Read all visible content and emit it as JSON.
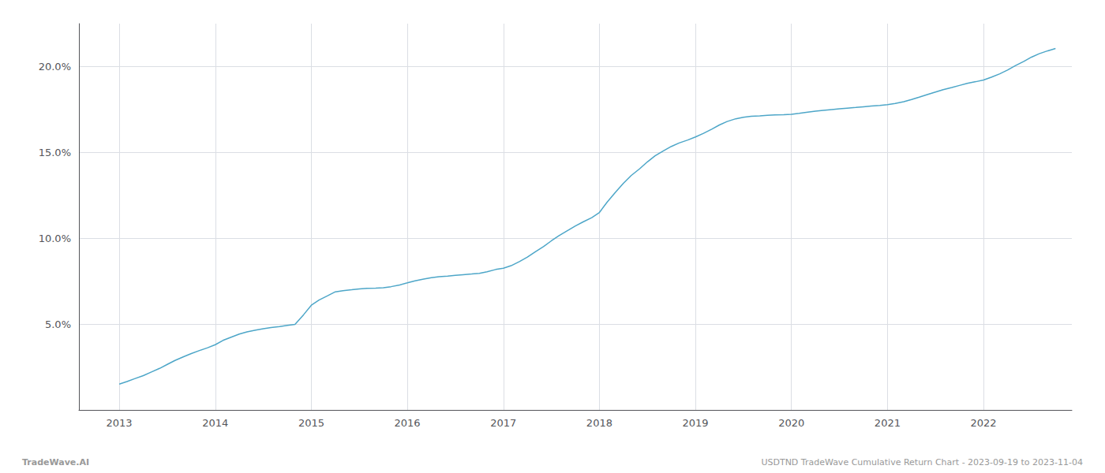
{
  "chart_data": {
    "type": "line",
    "color": "#4da6c8",
    "annotations": [
      "TradeWave.AI",
      "USDTND TradeWave Cumulative Return Chart - 2023-09-19 to 2023-11-04"
    ],
    "x": [
      2013.0,
      2013.08,
      2013.16,
      2013.25,
      2013.33,
      2013.42,
      2013.5,
      2013.58,
      2013.67,
      2013.75,
      2013.83,
      2013.92,
      2014.0,
      2014.08,
      2014.17,
      2014.25,
      2014.33,
      2014.42,
      2014.5,
      2014.58,
      2014.67,
      2014.75,
      2014.83,
      2014.92,
      2015.0,
      2015.08,
      2015.17,
      2015.25,
      2015.33,
      2015.42,
      2015.5,
      2015.58,
      2015.67,
      2015.75,
      2015.83,
      2015.92,
      2016.0,
      2016.08,
      2016.17,
      2016.25,
      2016.33,
      2016.42,
      2016.5,
      2016.58,
      2016.67,
      2016.75,
      2016.83,
      2016.92,
      2017.0,
      2017.08,
      2017.17,
      2017.25,
      2017.33,
      2017.42,
      2017.5,
      2017.58,
      2017.67,
      2017.75,
      2017.83,
      2017.92,
      2018.0,
      2018.08,
      2018.17,
      2018.25,
      2018.33,
      2018.42,
      2018.5,
      2018.58,
      2018.67,
      2018.75,
      2018.83,
      2018.92,
      2019.0,
      2019.08,
      2019.17,
      2019.25,
      2019.33,
      2019.42,
      2019.5,
      2019.58,
      2019.67,
      2019.75,
      2019.83,
      2019.92,
      2020.0,
      2020.08,
      2020.17,
      2020.25,
      2020.33,
      2020.42,
      2020.5,
      2020.58,
      2020.67,
      2020.75,
      2020.83,
      2020.92,
      2021.0,
      2021.08,
      2021.17,
      2021.25,
      2021.33,
      2021.42,
      2021.5,
      2021.58,
      2021.67,
      2021.75,
      2021.83,
      2021.92,
      2022.0,
      2022.08,
      2022.17,
      2022.25,
      2022.33,
      2022.42,
      2022.5,
      2022.58,
      2022.67,
      2022.75
    ],
    "values": [
      1.5,
      1.65,
      1.82,
      2.0,
      2.2,
      2.42,
      2.65,
      2.88,
      3.1,
      3.28,
      3.45,
      3.62,
      3.8,
      4.05,
      4.25,
      4.42,
      4.55,
      4.65,
      4.73,
      4.8,
      4.86,
      4.92,
      4.98,
      5.55,
      6.1,
      6.4,
      6.65,
      6.88,
      6.95,
      7.0,
      7.05,
      7.08,
      7.1,
      7.12,
      7.18,
      7.28,
      7.4,
      7.52,
      7.62,
      7.7,
      7.76,
      7.8,
      7.84,
      7.88,
      7.92,
      7.96,
      8.05,
      8.18,
      8.25,
      8.4,
      8.65,
      8.9,
      9.2,
      9.52,
      9.85,
      10.15,
      10.45,
      10.72,
      10.95,
      11.2,
      11.5,
      12.1,
      12.7,
      13.2,
      13.65,
      14.05,
      14.45,
      14.8,
      15.1,
      15.35,
      15.55,
      15.72,
      15.9,
      16.1,
      16.35,
      16.6,
      16.8,
      16.96,
      17.05,
      17.1,
      17.13,
      17.16,
      17.18,
      17.2,
      17.22,
      17.28,
      17.35,
      17.4,
      17.45,
      17.5,
      17.54,
      17.58,
      17.62,
      17.66,
      17.7,
      17.74,
      17.78,
      17.85,
      17.95,
      18.08,
      18.22,
      18.38,
      18.52,
      18.65,
      18.78,
      18.9,
      19.02,
      19.12,
      19.22,
      19.38,
      19.58,
      19.8,
      20.05,
      20.3,
      20.55,
      20.75,
      20.92,
      21.05
    ],
    "xlim": [
      2012.58,
      2022.92
    ],
    "xticks": [
      2013,
      2014,
      2015,
      2016,
      2017,
      2018,
      2019,
      2020,
      2021,
      2022
    ],
    "ylim": [
      0,
      22.5
    ],
    "yticks": [
      {
        "value": 5.0,
        "label": "5.0%"
      },
      {
        "value": 10.0,
        "label": "10.0%"
      },
      {
        "value": 15.0,
        "label": "15.0%"
      },
      {
        "value": 20.0,
        "label": "20.0%"
      }
    ],
    "grid": true
  }
}
